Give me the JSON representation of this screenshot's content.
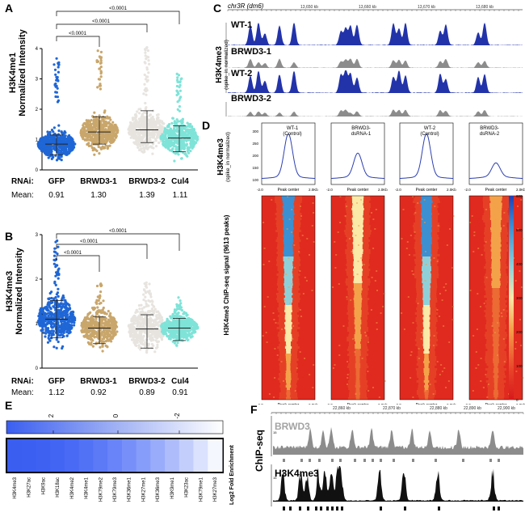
{
  "panels": {
    "A": "A",
    "B": "B",
    "C": "C",
    "D": "D",
    "E": "E",
    "F": "F"
  },
  "panel_a": {
    "ylabel_line1": "H3K4me1",
    "ylabel_line2": "Normalized Intensity",
    "yticks": [
      "0",
      "1",
      "2",
      "3",
      "4"
    ],
    "rnai_label": "RNAi:",
    "mean_label": "Mean:",
    "groups": [
      "GFP",
      "BRWD3-1",
      "BRWD3-2",
      "Cul4"
    ],
    "means": [
      "0.91",
      "1.30",
      "1.39",
      "1.11"
    ],
    "pvalues": [
      "<0.0001",
      "<0.0001",
      "<0.0001"
    ]
  },
  "panel_b": {
    "ylabel_line1": "H3K4me3",
    "ylabel_line2": "Normalized Intensity",
    "yticks": [
      "0",
      "1",
      "2",
      "3"
    ],
    "rnai_label": "RNAi:",
    "mean_label": "Mean:",
    "groups": [
      "GFP",
      "BRWD3-1",
      "BRWD3-2",
      "Cul4"
    ],
    "means": [
      "1.12",
      "0.92",
      "0.89",
      "0.91"
    ],
    "pvalues": [
      "<0.0001",
      "<0.0001",
      "<0.0001"
    ]
  },
  "panel_c": {
    "chrom": "chr3R",
    "genome": "(dm6)",
    "coords": [
      "13,650 kb",
      "13,660 kb",
      "13,670 kb",
      "13,680 kb"
    ],
    "ylabel_line1": "H3K4me3",
    "ylabel_line2": "(spike_in normalized)",
    "tracks": [
      "WT-1",
      "BRWD3-1",
      "WT-2",
      "BRWD3-2"
    ]
  },
  "panel_d": {
    "ylabel_line1": "H3K4me3",
    "ylabel_line2": "(spike_in normalized)",
    "heat_ylabel": "H3K4me3 ChIP-seq signal (9613 peaks)",
    "profile_titles": [
      [
        "WT-1",
        "(Control)"
      ],
      [
        "BRWD3-",
        "dsRNA-1"
      ],
      [
        "WT-2",
        "(Control)"
      ],
      [
        "BRWD3-",
        "dsRNA-2"
      ]
    ],
    "profile_yticks": [
      "300",
      "250",
      "200",
      "150",
      "100"
    ],
    "x_left": "-2.0",
    "x_center": "Peak center",
    "x_right": "2.0Kb",
    "colorbar_ticks": [
      "600",
      "500",
      "400",
      "300",
      "200",
      "100",
      "0"
    ]
  },
  "panel_e": {
    "scale_ticks": [
      "2",
      "0",
      "-2"
    ],
    "marks": [
      "H3K4me3",
      "H3K27ac",
      "H3K9ac",
      "H3K18ac",
      "H3K4me2",
      "H3K4me1",
      "H3K79me2",
      "H3K79me3",
      "H3K36me1",
      "H3K27me1",
      "H3K36me3",
      "H3K9me1",
      "H3K23ac",
      "H3K79me1",
      "H3K27me3"
    ],
    "side_label": "Log2 Fold Enrichment"
  },
  "panel_f": {
    "coords": [
      "22,860 kb",
      "22,870 kb",
      "22,880 kb",
      "22,890 kb",
      "22,900 kb"
    ],
    "ylabel": "ChIP-seq",
    "track1": "BRWD3",
    "track2": "H3K4me3",
    "scale1": "15",
    "scale2": "15"
  },
  "colors": {
    "gfp": "#1f66d6",
    "brwd3_1": "#c9a66b",
    "brwd3_2": "#e7e4df",
    "cul4": "#7fe3d8",
    "track_blue": "#2233aa",
    "track_grey": "#8c8c8c",
    "profile_line": "#2c3fb0"
  }
}
